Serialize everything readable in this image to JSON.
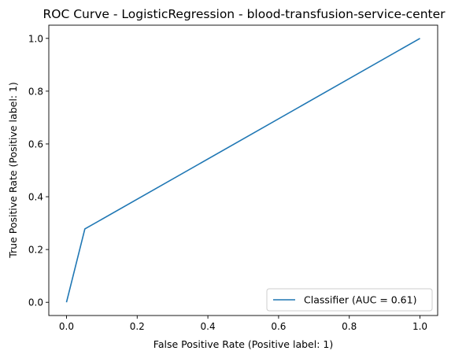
{
  "chart_data": {
    "type": "line",
    "title": "ROC Curve - LogisticRegression - blood-transfusion-service-center",
    "xlabel": "False Positive Rate (Positive label: 1)",
    "ylabel": "True Positive Rate (Positive label: 1)",
    "xlim": [
      -0.05,
      1.05
    ],
    "ylim": [
      -0.05,
      1.05
    ],
    "xticks": [
      "0.0",
      "0.2",
      "0.4",
      "0.6",
      "0.8",
      "1.0"
    ],
    "yticks": [
      "0.0",
      "0.2",
      "0.4",
      "0.6",
      "0.8",
      "1.0"
    ],
    "grid": false,
    "legend_position": "lower right",
    "series": [
      {
        "name": "Classifier (AUC = 0.61)",
        "color": "#1f77b4",
        "x": [
          0.0,
          0.052,
          1.0
        ],
        "y": [
          0.0,
          0.278,
          1.0
        ]
      }
    ]
  }
}
